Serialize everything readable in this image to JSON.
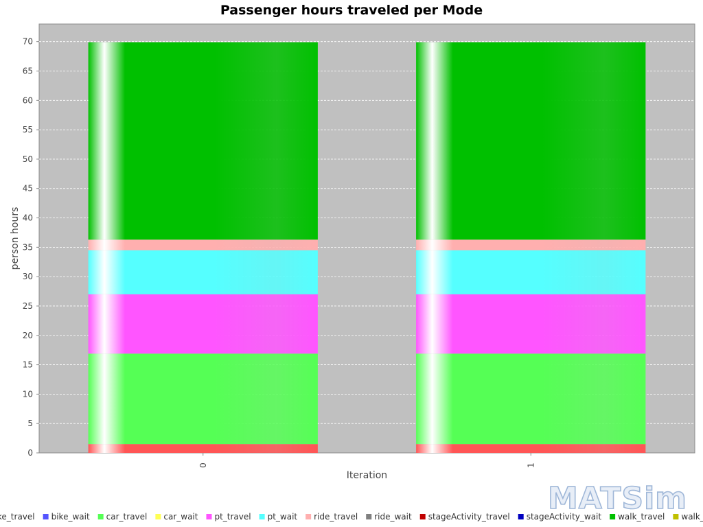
{
  "chart_data": {
    "type": "bar",
    "stacked": true,
    "title": "Passenger hours traveled per Mode",
    "xlabel": "Iteration",
    "ylabel": "person hours",
    "categories": [
      "0",
      "1"
    ],
    "ylim": [
      0,
      73
    ],
    "yticks": [
      0,
      5,
      10,
      15,
      20,
      25,
      30,
      35,
      40,
      45,
      50,
      55,
      60,
      65,
      70
    ],
    "grid": true,
    "legend_position": "bottom",
    "series": [
      {
        "name": "bike_travel",
        "color": "#ff5555",
        "values": [
          1.5,
          1.5
        ]
      },
      {
        "name": "bike_wait",
        "color": "#5555ff",
        "values": [
          0,
          0
        ]
      },
      {
        "name": "car_travel",
        "color": "#55ff55",
        "values": [
          15.4,
          15.4
        ]
      },
      {
        "name": "car_wait",
        "color": "#ffff55",
        "values": [
          0,
          0
        ]
      },
      {
        "name": "pt_travel",
        "color": "#ff55ff",
        "values": [
          10.1,
          10.1
        ]
      },
      {
        "name": "pt_wait",
        "color": "#55ffff",
        "values": [
          7.5,
          7.5
        ]
      },
      {
        "name": "ride_travel",
        "color": "#ffafaf",
        "values": [
          1.8,
          1.8
        ]
      },
      {
        "name": "ride_wait",
        "color": "#808080",
        "values": [
          0,
          0
        ]
      },
      {
        "name": "stageActivity_travel",
        "color": "#c00000",
        "values": [
          0,
          0
        ]
      },
      {
        "name": "stageActivity_wait",
        "color": "#0000c0",
        "values": [
          0,
          0
        ]
      },
      {
        "name": "walk_travel",
        "color": "#00c000",
        "values": [
          33.6,
          33.6
        ]
      },
      {
        "name": "walk_wait",
        "color": "#c0c000",
        "values": [
          0,
          0
        ]
      }
    ]
  },
  "logo": {
    "text": "MATSim"
  }
}
